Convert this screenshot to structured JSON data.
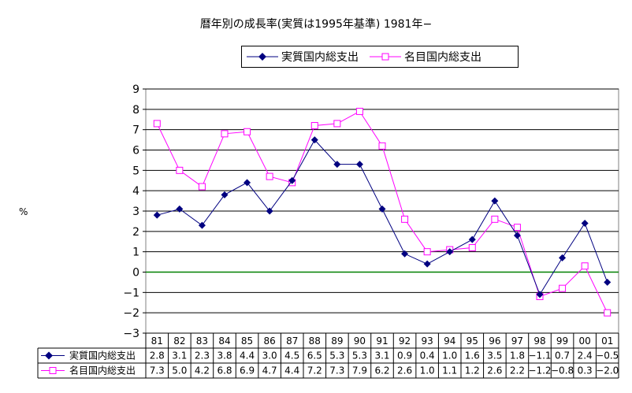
{
  "title": "暦年別の成長率(実質は1995年基準) 1981年−",
  "chart_data": {
    "type": "line",
    "title": "暦年別の成長率(実質は1995年基準) 1981年−",
    "ylabel": "%",
    "xlabel": "",
    "ylim": [
      -3,
      9
    ],
    "yticks": [
      9,
      8,
      7,
      6,
      5,
      4,
      3,
      2,
      1,
      0,
      -1,
      -2,
      -3
    ],
    "ytick_labels": [
      "9",
      "8",
      "7",
      "6",
      "5",
      "4",
      "3",
      "2",
      "1",
      "0",
      "−1",
      "−2",
      "−3"
    ],
    "grid": true,
    "legend_position": "top-right",
    "categories": [
      "81",
      "82",
      "83",
      "84",
      "85",
      "86",
      "87",
      "88",
      "89",
      "90",
      "91",
      "92",
      "93",
      "94",
      "95",
      "96",
      "97",
      "98",
      "99",
      "00",
      "01"
    ],
    "series": [
      {
        "name": "実質国内総支出",
        "color": "#000080",
        "marker": "diamond",
        "values": [
          2.8,
          3.1,
          2.3,
          3.8,
          4.4,
          3.0,
          4.5,
          6.5,
          5.3,
          5.3,
          3.1,
          0.9,
          0.4,
          1.0,
          1.6,
          3.5,
          1.8,
          -1.1,
          0.7,
          2.4,
          -0.5
        ],
        "labels": [
          "2.8",
          "3.1",
          "2.3",
          "3.8",
          "4.4",
          "3.0",
          "4.5",
          "6.5",
          "5.3",
          "5.3",
          "3.1",
          "0.9",
          "0.4",
          "1.0",
          "1.6",
          "3.5",
          "1.8",
          "−1.1",
          "0.7",
          "2.4",
          "−0.5"
        ]
      },
      {
        "name": "名目国内総支出",
        "color": "#ff00ff",
        "marker": "square",
        "values": [
          7.3,
          5.0,
          4.2,
          6.8,
          6.9,
          4.7,
          4.4,
          7.2,
          7.3,
          7.9,
          6.2,
          2.6,
          1.0,
          1.1,
          1.2,
          2.6,
          2.2,
          -1.2,
          -0.8,
          0.3,
          -2.0
        ],
        "labels": [
          "7.3",
          "5.0",
          "4.2",
          "6.8",
          "6.9",
          "4.7",
          "4.4",
          "7.2",
          "7.3",
          "7.9",
          "6.2",
          "2.6",
          "1.0",
          "1.1",
          "1.2",
          "2.6",
          "2.2",
          "−1.2",
          "−0.8",
          "0.3",
          "−2.0"
        ]
      }
    ],
    "zero_line_color": "#008000"
  }
}
